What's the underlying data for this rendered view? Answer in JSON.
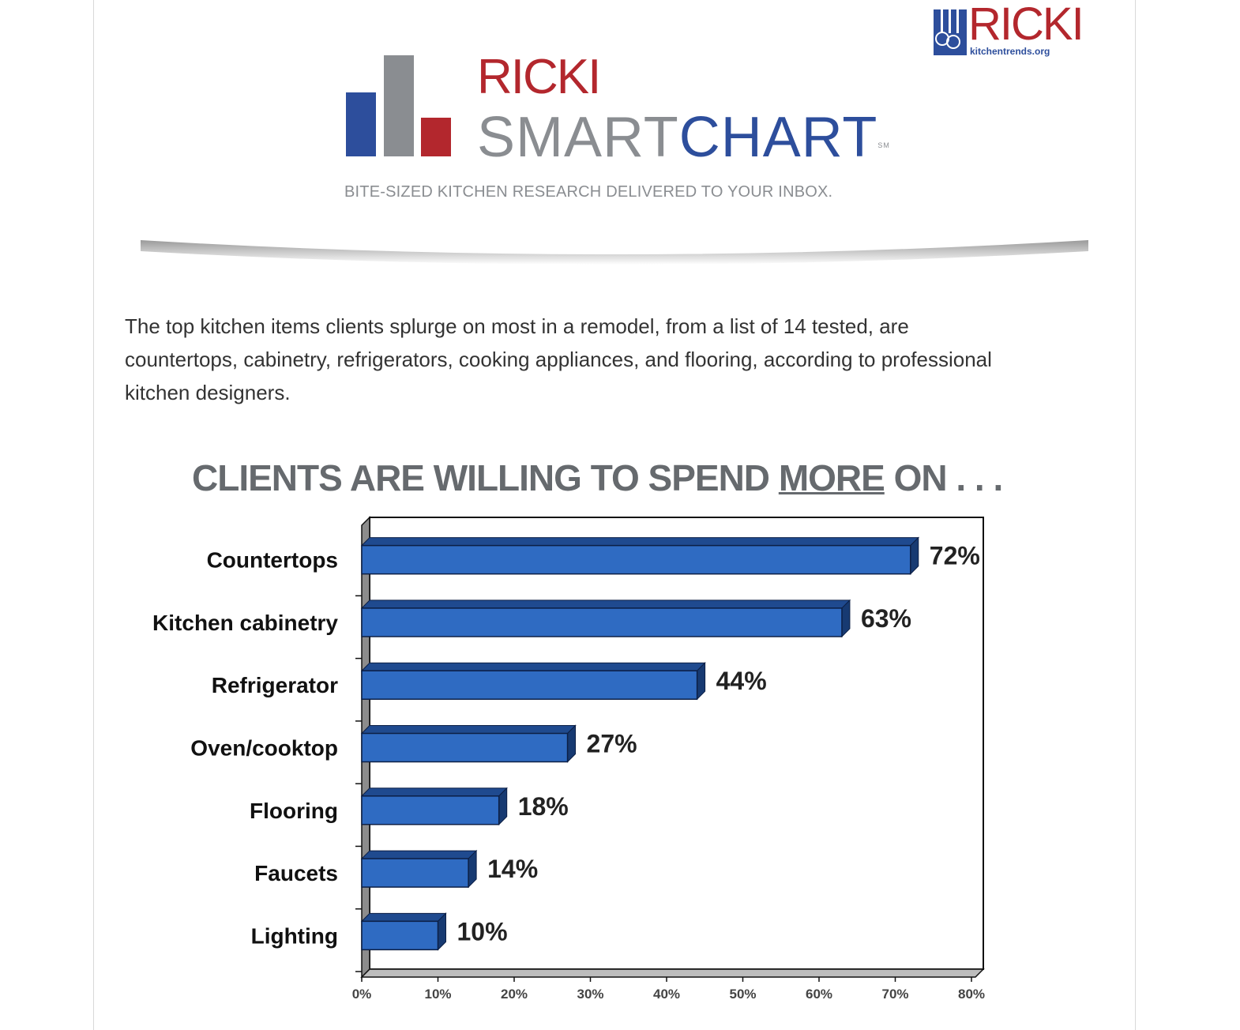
{
  "corner_logo": {
    "wordmark": "RICKI",
    "url": "kitchentrends.org"
  },
  "logo": {
    "ricki": "RICKI",
    "smart": "SMART",
    "chart": "CHART",
    "service_mark": "SM",
    "tagline": "BITE-SIZED KITCHEN RESEARCH DELIVERED TO YOUR INBOX.",
    "colors": {
      "blue": "#2d4e9c",
      "gray": "#8a8d91",
      "red": "#b3272d"
    }
  },
  "intro_text": "The top kitchen items clients splurge on most in a remodel, from a list of 14 tested, are countertops, cabinetry, refrigerators, cooking appliances, and flooring, according to professional kitchen designers.",
  "chart_title": {
    "before": "CLIENTS ARE WILLING TO SPEND ",
    "emphasis": "MORE",
    "after": " ON . . ."
  },
  "chart_data": {
    "type": "bar",
    "orientation": "horizontal",
    "title": "CLIENTS ARE WILLING TO SPEND MORE ON . . .",
    "categories": [
      "Countertops",
      "Kitchen cabinetry",
      "Refrigerator",
      "Oven/cooktop",
      "Flooring",
      "Faucets",
      "Lighting"
    ],
    "values": [
      72,
      63,
      44,
      27,
      18,
      14,
      10
    ],
    "value_labels": [
      "72%",
      "63%",
      "44%",
      "27%",
      "18%",
      "14%",
      "10%"
    ],
    "xlim": [
      0,
      80
    ],
    "xticks": [
      "0%",
      "10%",
      "20%",
      "30%",
      "40%",
      "50%",
      "60%",
      "70%",
      "80%"
    ],
    "bar_color": "#2f6bc2",
    "grid": false
  }
}
